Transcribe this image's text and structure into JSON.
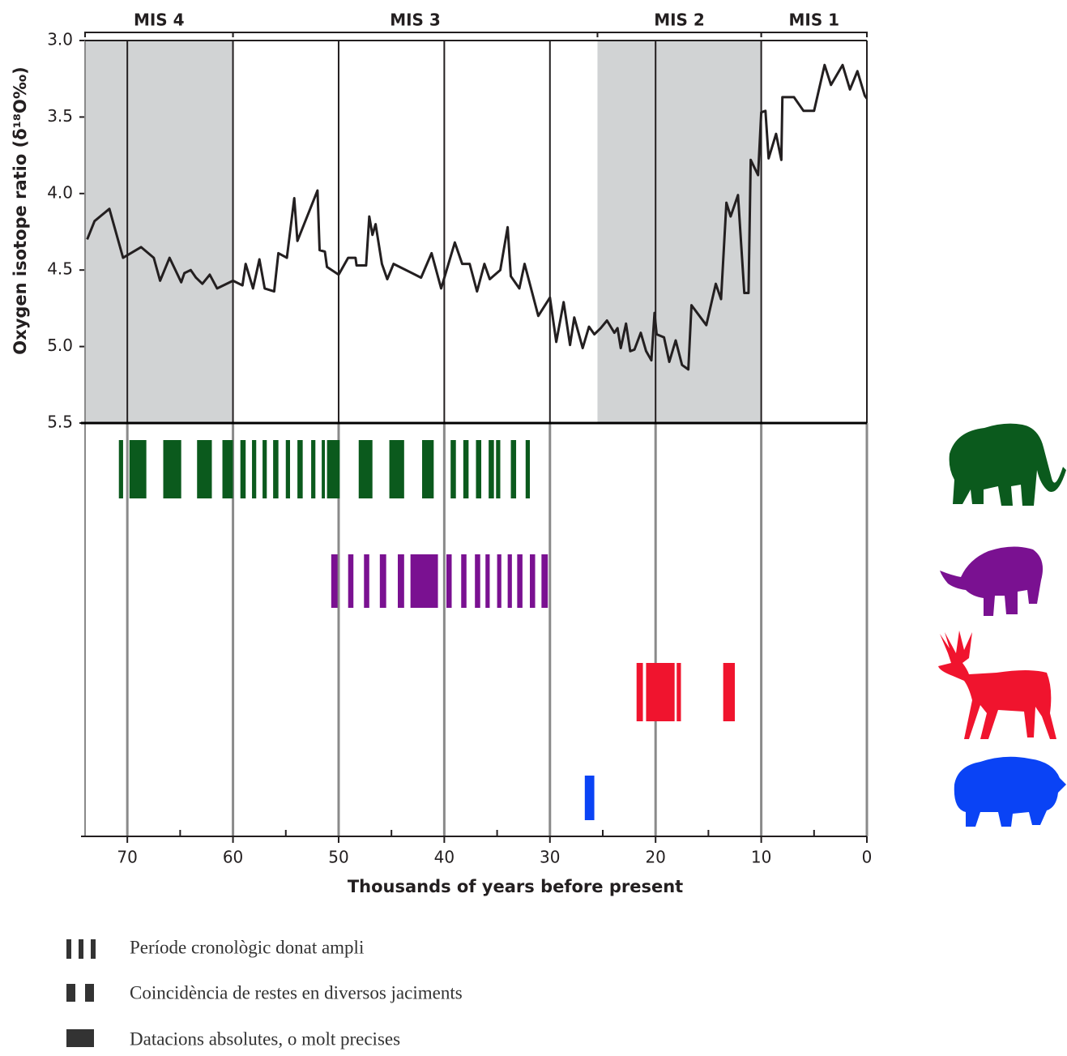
{
  "chart_data": {
    "type": "line",
    "ylabel": "Oxygen isotope ratio (δ¹⁸O‰)",
    "xlabel": "Thousands of years before present",
    "color": "#231f20",
    "x": [
      73.8,
      73.1,
      71.7,
      70.4,
      68.7,
      67.5,
      66.9,
      66.0,
      64.9,
      64.6,
      64.0,
      63.5,
      62.9,
      62.2,
      61.5,
      60.0,
      59.1,
      58.8,
      58.1,
      57.5,
      57.0,
      56.1,
      55.7,
      54.9,
      54.2,
      53.9,
      52.0,
      51.8,
      51.3,
      51.1,
      50.0,
      49.1,
      48.4,
      48.3,
      47.4,
      47.1,
      46.8,
      46.5,
      45.9,
      45.4,
      44.8,
      42.2,
      41.2,
      40.3,
      39.0,
      38.3,
      37.6,
      36.9,
      36.2,
      35.7,
      34.7,
      34.0,
      33.7,
      32.9,
      32.4,
      31.1,
      30.0,
      29.4,
      28.7,
      28.1,
      27.7,
      26.9,
      26.3,
      25.8,
      25.2,
      24.6,
      23.9,
      23.6,
      23.3,
      22.8,
      22.4,
      22.0,
      21.4,
      20.9,
      20.4,
      20.1,
      19.9,
      19.2,
      18.7,
      18.1,
      17.5,
      16.9,
      16.6,
      15.2,
      14.3,
      13.8,
      13.3,
      12.9,
      12.2,
      11.6,
      11.2,
      11.0,
      10.3,
      10.0,
      9.6,
      9.3,
      8.6,
      8.1,
      8.0,
      6.9,
      6.0,
      5.0,
      4.0,
      3.4,
      2.3,
      1.6,
      0.9,
      0.2,
      0
    ],
    "values": [
      4.3,
      4.18,
      4.1,
      4.42,
      4.35,
      4.42,
      4.57,
      4.42,
      4.58,
      4.52,
      4.5,
      4.55,
      4.59,
      4.53,
      4.62,
      4.57,
      4.6,
      4.46,
      4.62,
      4.43,
      4.62,
      4.64,
      4.39,
      4.42,
      4.03,
      4.31,
      3.98,
      4.37,
      4.38,
      4.48,
      4.53,
      4.42,
      4.42,
      4.47,
      4.47,
      4.15,
      4.27,
      4.2,
      4.46,
      4.56,
      4.46,
      4.55,
      4.39,
      4.62,
      4.32,
      4.46,
      4.46,
      4.64,
      4.46,
      4.56,
      4.5,
      4.22,
      4.54,
      4.62,
      4.46,
      4.8,
      4.68,
      4.97,
      4.71,
      4.99,
      4.81,
      5.01,
      4.87,
      4.92,
      4.88,
      4.83,
      4.91,
      4.88,
      5.01,
      4.85,
      5.03,
      5.02,
      4.91,
      5.03,
      5.09,
      4.78,
      4.92,
      4.94,
      5.1,
      4.96,
      5.12,
      5.15,
      4.73,
      4.86,
      4.59,
      4.69,
      4.06,
      4.15,
      4.01,
      4.65,
      4.65,
      3.78,
      3.88,
      3.47,
      3.46,
      3.77,
      3.61,
      3.78,
      3.37,
      3.37,
      3.46,
      3.46,
      3.16,
      3.29,
      3.16,
      3.32,
      3.2,
      3.36,
      3.38
    ],
    "xlim": [
      74,
      0
    ],
    "xticks": [
      70,
      60,
      50,
      40,
      30,
      20,
      10,
      0
    ],
    "xminorticks": [
      65,
      55,
      45,
      35,
      25,
      15,
      5
    ],
    "ylim": [
      3,
      5.5
    ],
    "yticks": [
      {
        "value": 3,
        "label": "3.0"
      },
      3.5,
      {
        "value": 4,
        "label": "4.0"
      },
      4.5,
      {
        "value": 5,
        "label": "5.0"
      },
      5.5
    ],
    "periods": [
      {
        "label": "MIS 4",
        "start": 74,
        "end": 60,
        "shaded": true
      },
      {
        "label": "MIS 3",
        "start": 60,
        "end": 25.5,
        "shaded": false
      },
      {
        "label": "MIS 2",
        "start": 25.5,
        "end": 10,
        "shaded": true
      },
      {
        "label": "MIS 1",
        "start": 10,
        "end": 0,
        "shaded": false
      }
    ],
    "ranges": [
      {
        "color": "#0b5a1d",
        "bars": [
          [
            70.8,
            70.4
          ],
          [
            69.8,
            68.2
          ],
          [
            66.6,
            64.9
          ],
          [
            63.4,
            62.0
          ],
          [
            61.0,
            60.0
          ],
          [
            59.3,
            58.8
          ],
          [
            58.2,
            57.8
          ],
          [
            57.2,
            56.8
          ],
          [
            56.2,
            55.7
          ],
          [
            55.0,
            54.6
          ],
          [
            53.9,
            53.4
          ],
          [
            52.6,
            52.2
          ],
          [
            51.6,
            51.3
          ],
          [
            51.1,
            49.9
          ],
          [
            48.1,
            46.8
          ],
          [
            45.2,
            43.8
          ],
          [
            42.1,
            41.0
          ],
          [
            39.4,
            38.9
          ],
          [
            38.2,
            37.7
          ],
          [
            37.0,
            36.5
          ],
          [
            35.8,
            35.3
          ],
          [
            35.1,
            34.7
          ],
          [
            33.7,
            33.2
          ],
          [
            32.3,
            31.9
          ]
        ]
      },
      {
        "color": "#7a1191",
        "bars": [
          [
            50.7,
            50.1
          ],
          [
            49.1,
            48.6
          ],
          [
            47.6,
            47.1
          ],
          [
            46.1,
            45.5
          ],
          [
            44.4,
            43.8
          ],
          [
            43.2,
            40.6
          ],
          [
            39.8,
            39.3
          ],
          [
            38.4,
            37.9
          ],
          [
            37.1,
            36.6
          ],
          [
            36.1,
            35.7
          ],
          [
            35.0,
            34.6
          ],
          [
            34.0,
            33.6
          ],
          [
            33.1,
            32.6
          ],
          [
            31.9,
            31.4
          ],
          [
            30.8,
            30.2
          ]
        ]
      },
      {
        "color": "#f0142e",
        "bars": [
          [
            21.8,
            21.2
          ],
          [
            20.9,
            18.2
          ],
          [
            18.0,
            17.6
          ],
          [
            13.6,
            12.5
          ]
        ]
      },
      {
        "color": "#0a43f5",
        "bars": [
          [
            26.7,
            25.8
          ]
        ]
      }
    ],
    "legend": [
      "Període cronològic donat ampli",
      "Coincidència de restes en diversos jaciments",
      "Datacions absolutes, o molt precises"
    ]
  }
}
